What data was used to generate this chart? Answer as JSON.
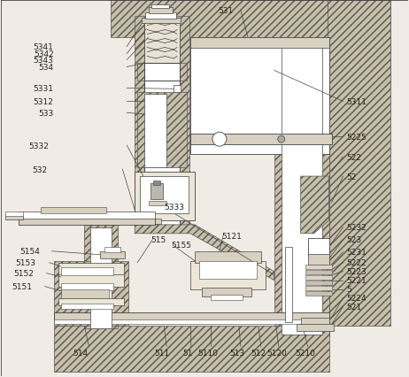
{
  "figsize": [
    4.62,
    4.27
  ],
  "dpi": 100,
  "bg": "#f0ece5",
  "hatch_fc": "#c8bfa8",
  "hatch_ec": "#555555",
  "white": "#ffffff",
  "line_c": "#444444",
  "light_gray": "#d8d0c0"
}
